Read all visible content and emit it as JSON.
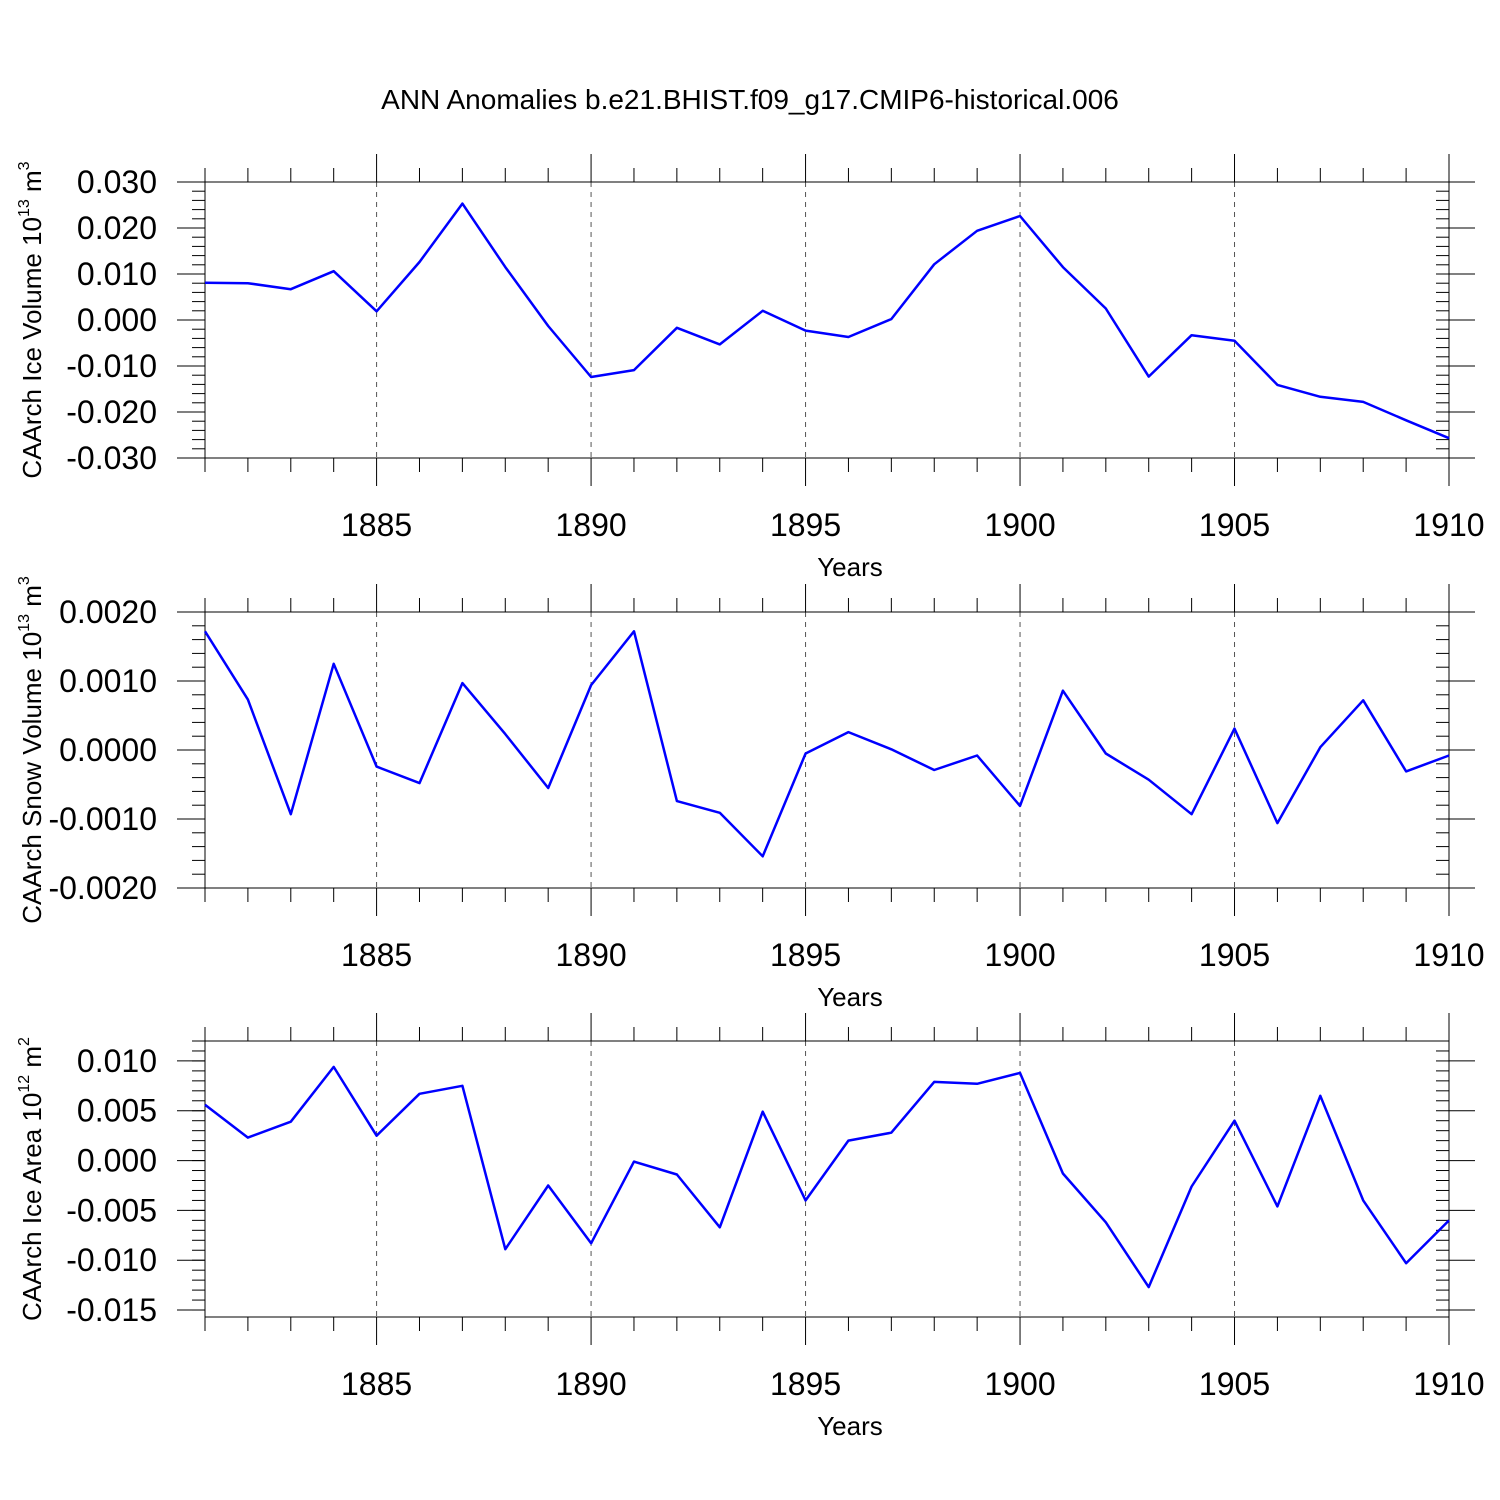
{
  "title": "ANN Anomalies b.e21.BHIST.f09_g17.CMIP6-historical.006",
  "colors": {
    "series": "#0000ff",
    "axis": "#000000",
    "grid": "#555555"
  },
  "chart_data": [
    {
      "type": "line",
      "ylabel_main": "CAArch Ice Volume 10",
      "ylabel_exp": "13",
      "ylabel_unit": " m",
      "ylabel_unit_exp": "3",
      "xlabel": "Years",
      "xlim": [
        1881,
        1910
      ],
      "ylim": [
        -0.03,
        0.03
      ],
      "xticks": [
        1885,
        1890,
        1895,
        1900,
        1905,
        1910
      ],
      "xtick_labels": [
        "1885",
        "1890",
        "1895",
        "1900",
        "1905",
        "1910"
      ],
      "yticks": [
        0.03,
        0.02,
        0.01,
        0.0,
        -0.01,
        -0.02,
        -0.03
      ],
      "ytick_labels": [
        "0.030",
        "0.020",
        "0.010",
        "0.000",
        "-0.010",
        "-0.020",
        "-0.030"
      ],
      "yminor_step": 0.002,
      "x": [
        1881,
        1882,
        1883,
        1884,
        1885,
        1886,
        1887,
        1888,
        1889,
        1890,
        1891,
        1892,
        1893,
        1894,
        1895,
        1896,
        1897,
        1898,
        1899,
        1900,
        1901,
        1902,
        1903,
        1904,
        1905,
        1906,
        1907,
        1908,
        1909,
        1910
      ],
      "values": [
        0.0081,
        0.008,
        0.0067,
        0.0106,
        0.0019,
        0.0126,
        0.0253,
        0.0115,
        -0.0013,
        -0.0124,
        -0.0109,
        -0.0017,
        -0.0053,
        0.002,
        -0.0023,
        -0.0037,
        0.0002,
        0.0121,
        0.0194,
        0.0226,
        0.0115,
        0.0025,
        -0.0123,
        -0.0033,
        -0.0045,
        -0.0141,
        -0.0167,
        -0.0178,
        -0.0218,
        -0.0257
      ]
    },
    {
      "type": "line",
      "ylabel_main": "CAArch Snow Volume 10",
      "ylabel_exp": "13",
      "ylabel_unit": " m",
      "ylabel_unit_exp": "3",
      "xlabel": "Years",
      "xlim": [
        1881,
        1910
      ],
      "ylim": [
        -0.002,
        0.002
      ],
      "xticks": [
        1885,
        1890,
        1895,
        1900,
        1905,
        1910
      ],
      "xtick_labels": [
        "1885",
        "1890",
        "1895",
        "1900",
        "1905",
        "1910"
      ],
      "yticks": [
        0.002,
        0.001,
        0.0,
        -0.001,
        -0.002
      ],
      "ytick_labels": [
        "0.0020",
        "0.0010",
        "0.0000",
        "-0.0010",
        "-0.0020"
      ],
      "yminor_step": 0.0002,
      "x": [
        1881,
        1882,
        1883,
        1884,
        1885,
        1886,
        1887,
        1888,
        1889,
        1890,
        1891,
        1892,
        1893,
        1894,
        1895,
        1896,
        1897,
        1898,
        1899,
        1900,
        1901,
        1902,
        1903,
        1904,
        1905,
        1906,
        1907,
        1908,
        1909,
        1910
      ],
      "values": [
        0.00172,
        0.00073,
        -0.00093,
        0.00125,
        -0.00024,
        -0.00048,
        0.00097,
        0.00023,
        -0.00055,
        0.00094,
        0.00172,
        -0.00074,
        -0.00091,
        -0.00154,
        -5e-05,
        0.00026,
        1e-05,
        -0.00029,
        -8e-05,
        -0.00081,
        0.00086,
        -5e-05,
        -0.00043,
        -0.00093,
        0.00031,
        -0.00106,
        4e-05,
        0.00072,
        -0.00031,
        -8e-05
      ]
    },
    {
      "type": "line",
      "ylabel_main": "CAArch Ice Area 10",
      "ylabel_exp": "12",
      "ylabel_unit": " m",
      "ylabel_unit_exp": "2",
      "xlabel": "Years",
      "xlim": [
        1881,
        1910
      ],
      "ylim": [
        -0.0157,
        0.012
      ],
      "xticks": [
        1885,
        1890,
        1895,
        1900,
        1905,
        1910
      ],
      "xtick_labels": [
        "1885",
        "1890",
        "1895",
        "1900",
        "1905",
        "1910"
      ],
      "yticks": [
        0.01,
        0.005,
        0.0,
        -0.005,
        -0.01,
        -0.015
      ],
      "ytick_labels": [
        "0.010",
        "0.005",
        "0.000",
        "-0.005",
        "-0.010",
        "-0.015"
      ],
      "yminor_step": 0.001,
      "x": [
        1881,
        1882,
        1883,
        1884,
        1885,
        1886,
        1887,
        1888,
        1889,
        1890,
        1891,
        1892,
        1893,
        1894,
        1895,
        1896,
        1897,
        1898,
        1899,
        1900,
        1901,
        1902,
        1903,
        1904,
        1905,
        1906,
        1907,
        1908,
        1909,
        1910
      ],
      "values": [
        0.0056,
        0.0023,
        0.0039,
        0.0094,
        0.0025,
        0.0067,
        0.0075,
        -0.0089,
        -0.0025,
        -0.0083,
        -0.0001,
        -0.0014,
        -0.0067,
        0.0049,
        -0.004,
        0.002,
        0.0028,
        0.0079,
        0.0077,
        0.0088,
        -0.0013,
        -0.0062,
        -0.0127,
        -0.0026,
        0.004,
        -0.0046,
        0.0065,
        -0.004,
        -0.0103,
        -0.006
      ]
    }
  ]
}
